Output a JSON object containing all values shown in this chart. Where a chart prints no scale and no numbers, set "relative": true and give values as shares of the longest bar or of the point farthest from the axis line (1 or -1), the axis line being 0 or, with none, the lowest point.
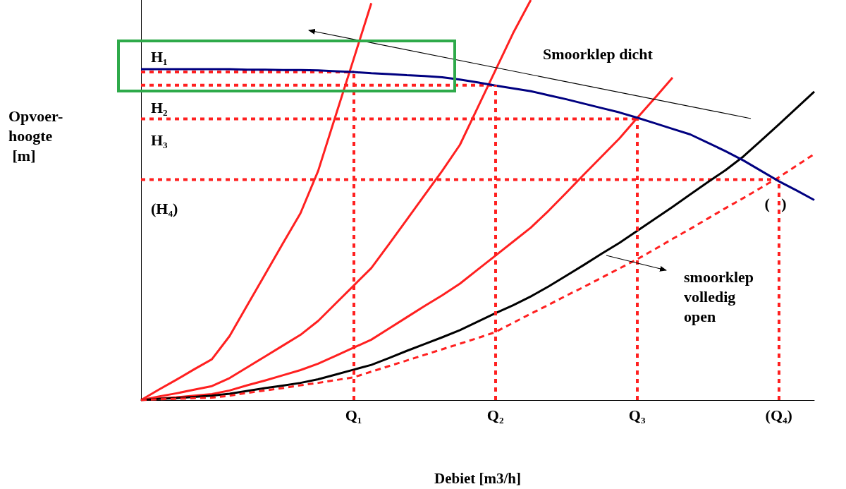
{
  "chart_data": {
    "type": "line",
    "relative": true,
    "xlabel": "Debiet [m3/h]",
    "categories": [
      null,
      null,
      null,
      null,
      null,
      null,
      null,
      null,
      null,
      null,
      null,
      null,
      "Q₁",
      null,
      null,
      null,
      null,
      null,
      null,
      null,
      "Q₂",
      null,
      null,
      null,
      null,
      null,
      null,
      null,
      "Q₃",
      null,
      null,
      null,
      null,
      null,
      null,
      null,
      "(Q₄)",
      null,
      null
    ],
    "tick_labels": "x",
    "grid": false,
    "marker": "none",
    "line_style": "solid",
    "series": [
      {
        "color": "#ff2020",
        "values": [
          0,
          0.026,
          0.051,
          0.077,
          0.102,
          0.16,
          0.237,
          0.314,
          0.391,
          0.467,
          0.573,
          0.713,
          0.852,
          0.992,
          null,
          null,
          null,
          null,
          null,
          null,
          null,
          null,
          null,
          null,
          null,
          null,
          null,
          null,
          null,
          null,
          null,
          null,
          null,
          null,
          null,
          null,
          null,
          null,
          null
        ]
      },
      {
        "color": "#ff2020",
        "values": [
          0,
          0.009,
          0.017,
          0.026,
          0.035,
          0.055,
          0.082,
          0.109,
          0.136,
          0.163,
          0.198,
          0.242,
          0.286,
          0.33,
          0.39,
          0.451,
          0.512,
          0.573,
          0.638,
          0.731,
          0.824,
          0.917,
          1.0,
          null,
          null,
          null,
          null,
          null,
          null,
          null,
          null,
          null,
          null,
          null,
          null,
          null,
          null,
          null,
          null
        ]
      },
      {
        "color": "#ff2020",
        "values": [
          0,
          0.004,
          0.007,
          0.011,
          0.015,
          0.024,
          0.037,
          0.049,
          0.062,
          0.075,
          0.091,
          0.111,
          0.131,
          0.151,
          0.179,
          0.207,
          0.235,
          0.262,
          0.291,
          0.326,
          0.361,
          0.396,
          0.431,
          0.473,
          0.518,
          0.564,
          0.609,
          0.654,
          0.705,
          0.755,
          0.806,
          null,
          null,
          null,
          null,
          null,
          null,
          null,
          null
        ]
      },
      {
        "color": "#000000",
        "values": [
          0,
          0.003,
          0.005,
          0.008,
          0.011,
          0.016,
          0.023,
          0.03,
          0.036,
          0.043,
          0.052,
          0.064,
          0.076,
          0.088,
          0.105,
          0.123,
          0.14,
          0.157,
          0.175,
          0.196,
          0.217,
          0.237,
          0.259,
          0.284,
          0.311,
          0.338,
          0.366,
          0.393,
          0.423,
          0.453,
          0.483,
          0.514,
          0.545,
          0.575,
          0.609,
          0.649,
          0.689,
          0.73,
          0.771
        ]
      },
      {
        "color": "#ff2020",
        "line_style": "dashed",
        "values": [
          0,
          0.002,
          0.003,
          0.005,
          0.006,
          0.011,
          0.018,
          0.024,
          0.03,
          0.037,
          0.043,
          0.05,
          0.057,
          0.071,
          0.085,
          0.099,
          0.113,
          0.127,
          0.141,
          0.155,
          0.17,
          0.193,
          0.216,
          0.238,
          0.261,
          0.283,
          0.306,
          0.329,
          0.352,
          0.377,
          0.403,
          0.428,
          0.454,
          0.48,
          0.505,
          0.531,
          0.557,
          0.586,
          0.615
        ]
      },
      {
        "color": "#000080",
        "values": [
          0.827,
          0.827,
          0.827,
          0.827,
          0.827,
          0.827,
          0.826,
          0.826,
          0.825,
          0.825,
          0.824,
          0.822,
          0.82,
          0.817,
          0.815,
          0.812,
          0.81,
          0.807,
          0.801,
          0.794,
          0.786,
          0.779,
          0.772,
          0.762,
          0.752,
          0.741,
          0.73,
          0.719,
          0.706,
          0.692,
          0.678,
          0.664,
          0.643,
          0.622,
          0.599,
          0.573,
          0.547,
          0.524,
          0.5
        ]
      },
      {
        "color": "#ff2020",
        "line_style": "dotted",
        "values": [
          0.82,
          0.82,
          0.82,
          0.82,
          0.82,
          0.82,
          0.82,
          0.82,
          0.82,
          0.82,
          0.82,
          0.82,
          0.82,
          null,
          null,
          null,
          null,
          null,
          null,
          null,
          null,
          null,
          null,
          null,
          null,
          null,
          null,
          null,
          null,
          null,
          null,
          null,
          null,
          null,
          null,
          null,
          null,
          null,
          null
        ]
      },
      {
        "color": "#ff2020",
        "line_style": "dotted",
        "values": [
          0.787,
          0.787,
          0.787,
          0.787,
          0.787,
          0.787,
          0.787,
          0.787,
          0.787,
          0.787,
          0.787,
          0.787,
          0.787,
          0.787,
          0.787,
          0.787,
          0.787,
          0.787,
          0.787,
          0.787,
          0.787,
          null,
          null,
          null,
          null,
          null,
          null,
          null,
          null,
          null,
          null,
          null,
          null,
          null,
          null,
          null,
          null,
          null,
          null
        ]
      },
      {
        "color": "#ff2020",
        "line_style": "dotted",
        "values": [
          0.703,
          0.703,
          0.703,
          0.703,
          0.703,
          0.703,
          0.703,
          0.703,
          0.703,
          0.703,
          0.703,
          0.703,
          0.703,
          0.703,
          0.703,
          0.703,
          0.703,
          0.703,
          0.703,
          0.703,
          0.703,
          0.703,
          0.703,
          0.703,
          0.703,
          0.703,
          0.703,
          0.703,
          0.703,
          null,
          null,
          null,
          null,
          null,
          null,
          null,
          null,
          null,
          null
        ]
      },
      {
        "color": "#ff2020",
        "line_style": "dotted",
        "values": [
          0.551,
          0.551,
          0.551,
          0.551,
          0.551,
          0.551,
          0.551,
          0.551,
          0.551,
          0.551,
          0.551,
          0.551,
          0.551,
          0.551,
          0.551,
          0.551,
          0.551,
          0.551,
          0.551,
          0.551,
          0.551,
          0.551,
          0.551,
          0.551,
          0.551,
          0.551,
          0.551,
          0.551,
          0.551,
          0.551,
          0.551,
          0.551,
          0.551,
          0.551,
          0.551,
          0.551,
          0.551,
          null,
          null
        ]
      }
    ],
    "ref_lines": [
      {
        "axis": "x",
        "value": "Q₁",
        "color": "#ff2020",
        "line_style": "dotted"
      },
      {
        "axis": "x",
        "value": "Q₂",
        "color": "#ff2020",
        "line_style": "dotted"
      },
      {
        "axis": "x",
        "value": "Q₃",
        "color": "#ff2020",
        "line_style": "dotted"
      },
      {
        "axis": "x",
        "value": "(Q₄)",
        "color": "#ff2020",
        "line_style": "dotted"
      }
    ],
    "annotations": [
      "Opvoer-\nhoogte\n [m]",
      "H₁",
      "H₂",
      "H₃",
      "(H₄)",
      "(   )",
      "Smoorklep dicht",
      "smoorklep\nvolledig\nopen"
    ]
  }
}
